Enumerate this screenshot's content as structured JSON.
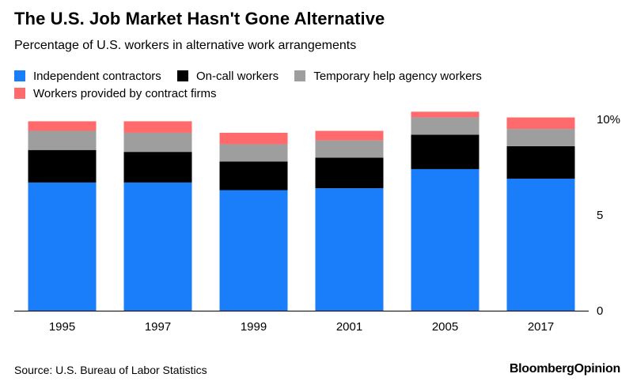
{
  "header": {
    "title": "The U.S. Job Market Hasn't Gone Alternative",
    "subtitle": "Percentage of U.S. workers in alternative work arrangements"
  },
  "footer": {
    "source": "Source: U.S. Bureau of Labor Statistics",
    "brand_main": "Bloomberg",
    "brand_sub": "Opinion"
  },
  "chart_data": {
    "type": "bar",
    "stacked": true,
    "categories": [
      "1995",
      "1997",
      "1999",
      "2001",
      "2005",
      "2017"
    ],
    "series": [
      {
        "name": "Independent contractors",
        "color": "#1a7efb",
        "values": [
          6.7,
          6.7,
          6.3,
          6.4,
          7.4,
          6.9
        ]
      },
      {
        "name": "On-call workers",
        "color": "#000000",
        "values": [
          1.7,
          1.6,
          1.5,
          1.6,
          1.8,
          1.7
        ]
      },
      {
        "name": "Temporary help agency workers",
        "color": "#9e9e9e",
        "values": [
          1.0,
          1.0,
          0.9,
          0.9,
          0.9,
          0.9
        ]
      },
      {
        "name": "Workers provided by contract firms",
        "color": "#ff6a6c",
        "values": [
          0.5,
          0.6,
          0.6,
          0.5,
          0.3,
          0.6
        ]
      }
    ],
    "ylim": [
      0,
      10
    ],
    "yticks": [
      0,
      5,
      10
    ],
    "ytick_labels": [
      "0",
      "5",
      "10%"
    ],
    "ytick_side": "right",
    "grid": false,
    "legend_placement": "top"
  }
}
